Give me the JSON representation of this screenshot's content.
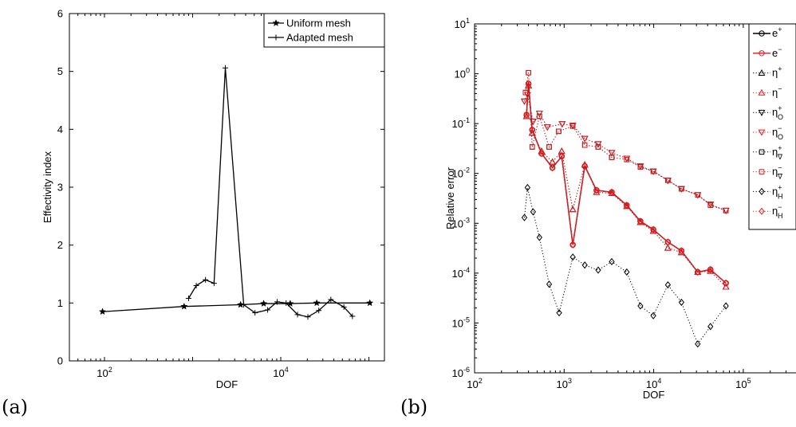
{
  "panel_labels": [
    "(a)",
    "(b)"
  ],
  "chart_data": [
    {
      "type": "line",
      "panel": "(a)",
      "xlabel": "DOF",
      "ylabel": "Effectivity index",
      "xscale": "log",
      "xlim": [
        40,
        150000
      ],
      "ylim": [
        0,
        6
      ],
      "yticks": [
        "0",
        "1",
        "2",
        "3",
        "4",
        "5",
        "6"
      ],
      "xticks": [
        {
          "base": "10",
          "exp": "2",
          "value": 100
        },
        {
          "base": "10",
          "exp": "4",
          "value": 10000
        }
      ],
      "grid": false,
      "legend": "top-right",
      "series": [
        {
          "name": "Uniform mesh",
          "marker": "star",
          "x": [
            95,
            800,
            3500,
            6400,
            12800,
            25600,
            102400
          ],
          "y": [
            0.85,
            0.94,
            0.97,
            0.99,
            0.99,
            1.0,
            1.0
          ]
        },
        {
          "name": "Adapted mesh",
          "marker": "plus",
          "x": [
            900,
            1100,
            1400,
            1750,
            2350,
            3800,
            5100,
            7100,
            9100,
            11500,
            15500,
            20300,
            27000,
            37000,
            52000,
            65000
          ],
          "y": [
            1.08,
            1.3,
            1.4,
            1.34,
            5.06,
            0.97,
            0.83,
            0.88,
            1.02,
            1.0,
            0.8,
            0.76,
            0.87,
            1.06,
            0.93,
            0.77
          ]
        }
      ]
    },
    {
      "type": "line",
      "panel": "(b)",
      "xlabel": "DOF",
      "ylabel": "Relative error",
      "xscale": "log",
      "yscale": "log",
      "xlim": [
        100,
        1000000
      ],
      "ylim": [
        1e-06,
        10
      ],
      "xticks": [
        {
          "base": "10",
          "exp": "2",
          "value": 100
        },
        {
          "base": "10",
          "exp": "3",
          "value": 1000
        },
        {
          "base": "10",
          "exp": "4",
          "value": 10000
        },
        {
          "base": "10",
          "exp": "5",
          "value": 100000
        }
      ],
      "yticks": [
        {
          "base": "10",
          "exp": "1",
          "value": 10
        },
        {
          "base": "10",
          "exp": "0",
          "value": 1
        },
        {
          "base": "10",
          "exp": "-1",
          "value": 0.1
        },
        {
          "base": "10",
          "exp": "-2",
          "value": 0.01
        },
        {
          "base": "10",
          "exp": "-3",
          "value": 0.001
        },
        {
          "base": "10",
          "exp": "-4",
          "value": 0.0001
        },
        {
          "base": "10",
          "exp": "-5",
          "value": 1e-05
        },
        {
          "base": "10",
          "exp": "-6",
          "value": 1e-06
        }
      ],
      "grid": false,
      "legend": "top-right",
      "series": [
        {
          "name": "e+",
          "label": "e",
          "sup": "+",
          "sub": "",
          "color": "#000000",
          "marker": "circle",
          "line": "solid",
          "x": [
            380,
            400,
            440,
            560,
            740,
            940,
            1250,
            1700,
            2300,
            3400,
            5000,
            7100,
            9900,
            14400,
            20400,
            31000,
            43000,
            64000
          ],
          "y": [
            0.15,
            0.63,
            0.075,
            0.025,
            0.013,
            0.022,
            0.00037,
            0.014,
            0.0046,
            0.0042,
            0.0023,
            0.0011,
            0.00075,
            0.00042,
            0.00028,
            0.000105,
            0.000118,
            6.3e-05
          ]
        },
        {
          "name": "e-",
          "label": "e",
          "sup": "−",
          "sub": "",
          "color": "#e41a1c",
          "marker": "circle",
          "line": "solid",
          "x": [
            380,
            400,
            440,
            560,
            740,
            940,
            1250,
            1700,
            2300,
            3400,
            5000,
            7100,
            9900,
            14400,
            20400,
            31000,
            43000,
            64000
          ],
          "y": [
            0.15,
            0.63,
            0.075,
            0.025,
            0.013,
            0.022,
            0.00037,
            0.014,
            0.0046,
            0.0042,
            0.0023,
            0.0011,
            0.00075,
            0.00042,
            0.00028,
            0.000105,
            0.000118,
            6.3e-05
          ]
        },
        {
          "name": "η+",
          "label": "η",
          "sup": "+",
          "sub": "",
          "color": "#000000",
          "marker": "triangle-up",
          "line": "dotted",
          "x": [
            380,
            400,
            440,
            560,
            740,
            940,
            1250,
            1700,
            2300,
            3400,
            5000,
            7100,
            9900,
            14400,
            20400,
            31000,
            43000,
            64000
          ],
          "y": [
            0.14,
            0.58,
            0.065,
            0.028,
            0.017,
            0.028,
            0.0019,
            0.015,
            0.0042,
            0.004,
            0.0022,
            0.00105,
            0.0007,
            0.00032,
            0.00026,
            0.000105,
            0.00011,
            5.3e-05
          ]
        },
        {
          "name": "η−",
          "label": "η",
          "sup": "−",
          "sub": "",
          "color": "#e41a1c",
          "marker": "triangle-up",
          "line": "dotted",
          "x": [
            380,
            400,
            440,
            560,
            740,
            940,
            1250,
            1700,
            2300,
            3400,
            5000,
            7100,
            9900,
            14400,
            20400,
            31000,
            43000,
            64000
          ],
          "y": [
            0.14,
            0.58,
            0.065,
            0.028,
            0.017,
            0.028,
            0.0019,
            0.015,
            0.0042,
            0.004,
            0.0022,
            0.00105,
            0.0007,
            0.00032,
            0.00026,
            0.000105,
            0.00011,
            5.3e-05
          ]
        },
        {
          "name": "η+O",
          "label": "η",
          "sup": "+",
          "sub": "O",
          "color": "#000000",
          "marker": "triangle-down",
          "line": "dotted",
          "x": [
            360,
            390,
            450,
            530,
            650,
            950,
            1250,
            1700,
            2400,
            3400,
            5000,
            7100,
            9900,
            14400,
            20400,
            31000,
            43000,
            64000
          ],
          "y": [
            0.28,
            0.38,
            0.11,
            0.16,
            0.085,
            0.098,
            0.092,
            0.05,
            0.039,
            0.026,
            0.02,
            0.014,
            0.011,
            0.0072,
            0.0049,
            0.0037,
            0.0024,
            0.0018
          ]
        },
        {
          "name": "η−O",
          "label": "η",
          "sup": "−",
          "sub": "O",
          "color": "#e41a1c",
          "marker": "triangle-down",
          "line": "dotted",
          "x": [
            360,
            390,
            450,
            530,
            650,
            950,
            1250,
            1700,
            2400,
            3400,
            5000,
            7100,
            9900,
            14400,
            20400,
            31000,
            43000,
            64000
          ],
          "y": [
            0.28,
            0.38,
            0.11,
            0.16,
            0.085,
            0.098,
            0.092,
            0.05,
            0.039,
            0.026,
            0.02,
            0.014,
            0.011,
            0.0072,
            0.0049,
            0.0037,
            0.0024,
            0.0018
          ]
        },
        {
          "name": "η+∇",
          "label": "η",
          "sup": "+",
          "sub": "∇",
          "color": "#000000",
          "marker": "square",
          "line": "dotted",
          "x": [
            370,
            400,
            440,
            530,
            680,
            870,
            1250,
            1700,
            2400,
            3400,
            5000,
            7100,
            9900,
            14400,
            20400,
            31000,
            43000,
            64000
          ],
          "y": [
            0.42,
            1.05,
            0.034,
            0.14,
            0.034,
            0.07,
            0.089,
            0.037,
            0.034,
            0.021,
            0.019,
            0.0135,
            0.011,
            0.0073,
            0.0049,
            0.0037,
            0.0023,
            0.0018
          ]
        },
        {
          "name": "η−∇",
          "label": "η",
          "sup": "−",
          "sub": "∇",
          "color": "#e41a1c",
          "marker": "square",
          "line": "dotted",
          "x": [
            370,
            400,
            440,
            530,
            680,
            870,
            1250,
            1700,
            2400,
            3400,
            5000,
            7100,
            9900,
            14400,
            20400,
            31000,
            43000,
            64000
          ],
          "y": [
            0.42,
            1.05,
            0.034,
            0.14,
            0.034,
            0.07,
            0.089,
            0.037,
            0.034,
            0.021,
            0.019,
            0.0135,
            0.011,
            0.0073,
            0.0049,
            0.0037,
            0.0023,
            0.0018
          ]
        },
        {
          "name": "η+H",
          "label": "η",
          "sup": "+",
          "sub": "H",
          "color": "#000000",
          "marker": "diamond",
          "line": "dotted",
          "x": [
            360,
            390,
            450,
            530,
            680,
            880,
            1250,
            1700,
            2400,
            3400,
            5000,
            7100,
            9900,
            14400,
            20400,
            31000,
            43000,
            64000
          ],
          "y": [
            0.0013,
            0.0052,
            0.0017,
            0.00052,
            6e-05,
            1.6e-05,
            0.00021,
            0.000145,
            0.000115,
            0.00017,
            0.000105,
            2.2e-05,
            1.4e-05,
            5.8e-05,
            2.6e-05,
            3.8e-06,
            8.5e-06,
            2.2e-05
          ]
        },
        {
          "name": "η−H",
          "label": "η",
          "sup": "−",
          "sub": "H",
          "color": "#e41a1c",
          "marker": "diamond",
          "line": "dotted",
          "x": [
            380,
            400,
            440,
            560,
            740,
            940,
            1250,
            1700,
            2300,
            3400,
            5000,
            7100,
            9900,
            14400,
            20400,
            31000,
            43000,
            64000
          ],
          "y": [
            0.15,
            0.63,
            0.075,
            0.025,
            0.013,
            0.022,
            0.00037,
            0.014,
            0.0046,
            0.0042,
            0.0023,
            0.0011,
            0.00075,
            0.00042,
            0.00028,
            0.000105,
            0.000118,
            6.3e-05
          ]
        }
      ]
    }
  ]
}
